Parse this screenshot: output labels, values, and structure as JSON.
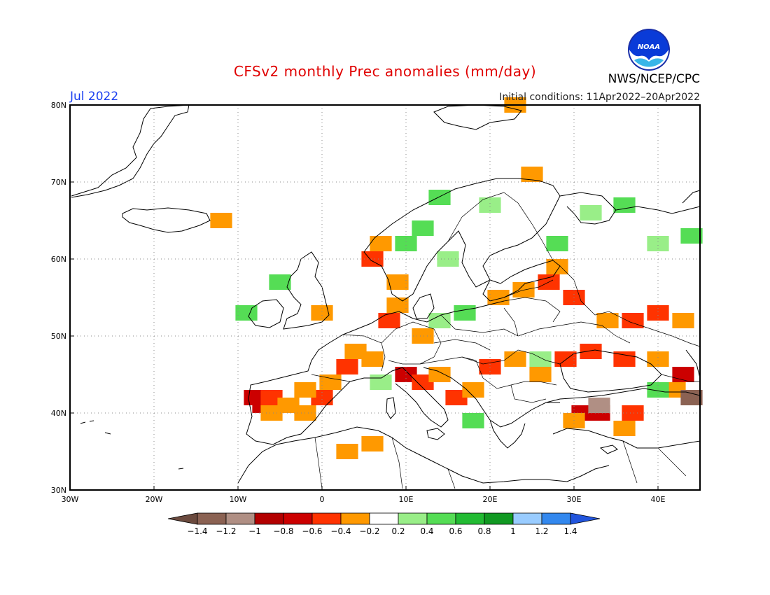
{
  "header": {
    "title": "CFSv2 monthly Prec anomalies (mm/day)",
    "month": "Jul 2022",
    "initial_conditions": "Initial conditions: 11Apr2022–20Apr2022",
    "agency": "NWS/NCEP/CPC",
    "logo_text": "NOAA"
  },
  "map": {
    "lon_range": [
      -30,
      45
    ],
    "lat_range": [
      30,
      80
    ],
    "lat_labels": [
      {
        "lat": 80,
        "label": "80N"
      },
      {
        "lat": 70,
        "label": "70N"
      },
      {
        "lat": 60,
        "label": "60N"
      },
      {
        "lat": 50,
        "label": "50N"
      },
      {
        "lat": 40,
        "label": "40N"
      },
      {
        "lat": 30,
        "label": "30N"
      }
    ],
    "lon_labels": [
      {
        "lon": -30,
        "label": "30W"
      },
      {
        "lon": -20,
        "label": "20W"
      },
      {
        "lon": -10,
        "label": "10W"
      },
      {
        "lon": 0,
        "label": "0"
      },
      {
        "lon": 10,
        "label": "10E"
      },
      {
        "lon": 20,
        "label": "20E"
      },
      {
        "lon": 30,
        "label": "30E"
      },
      {
        "lon": 40,
        "label": "40E"
      }
    ],
    "grid": true,
    "anomaly_cells": [
      {
        "lon": -7,
        "lat": 41,
        "v": -0.8
      },
      {
        "lon": -8,
        "lat": 42,
        "v": -0.8
      },
      {
        "lon": -6,
        "lat": 42,
        "v": -0.6
      },
      {
        "lon": -6,
        "lat": 40,
        "v": -0.4
      },
      {
        "lon": -4,
        "lat": 41,
        "v": -0.4
      },
      {
        "lon": -2,
        "lat": 40,
        "v": -0.4
      },
      {
        "lon": 0,
        "lat": 42,
        "v": -0.6
      },
      {
        "lon": -2,
        "lat": 43,
        "v": -0.4
      },
      {
        "lon": 1,
        "lat": 44,
        "v": -0.4
      },
      {
        "lon": 3,
        "lat": 46,
        "v": -0.6
      },
      {
        "lon": 4,
        "lat": 48,
        "v": -0.4
      },
      {
        "lon": 6,
        "lat": 47,
        "v": -0.4
      },
      {
        "lon": 10,
        "lat": 45,
        "v": -0.8
      },
      {
        "lon": 12,
        "lat": 44,
        "v": -0.6
      },
      {
        "lon": 14,
        "lat": 45,
        "v": -0.4
      },
      {
        "lon": 16,
        "lat": 42,
        "v": -0.6
      },
      {
        "lon": 18,
        "lat": 43,
        "v": -0.4
      },
      {
        "lon": 20,
        "lat": 46,
        "v": -0.6
      },
      {
        "lon": 23,
        "lat": 47,
        "v": -0.4
      },
      {
        "lon": 26,
        "lat": 45,
        "v": -0.4
      },
      {
        "lon": 29,
        "lat": 47,
        "v": -0.6
      },
      {
        "lon": 32,
        "lat": 48,
        "v": -0.6
      },
      {
        "lon": 36,
        "lat": 47,
        "v": -0.6
      },
      {
        "lon": 40,
        "lat": 47,
        "v": -0.4
      },
      {
        "lon": 43,
        "lat": 45,
        "v": -0.8
      },
      {
        "lon": 42,
        "lat": 43,
        "v": -0.4
      },
      {
        "lon": 44,
        "lat": 42,
        "v": -1.4
      },
      {
        "lon": 33,
        "lat": 40,
        "v": -0.8
      },
      {
        "lon": 31,
        "lat": 40,
        "v": -0.8
      },
      {
        "lon": 37,
        "lat": 40,
        "v": -0.6
      },
      {
        "lon": 33,
        "lat": 41,
        "v": -1.2
      },
      {
        "lon": 30,
        "lat": 39,
        "v": -0.4
      },
      {
        "lon": 36,
        "lat": 38,
        "v": -0.4
      },
      {
        "lon": 34,
        "lat": 52,
        "v": -0.4
      },
      {
        "lon": 37,
        "lat": 52,
        "v": -0.6
      },
      {
        "lon": 40,
        "lat": 53,
        "v": -0.6
      },
      {
        "lon": 43,
        "lat": 52,
        "v": -0.4
      },
      {
        "lon": 30,
        "lat": 55,
        "v": -0.6
      },
      {
        "lon": 27,
        "lat": 57,
        "v": -0.6
      },
      {
        "lon": 24,
        "lat": 56,
        "v": -0.4
      },
      {
        "lon": 21,
        "lat": 55,
        "v": -0.4
      },
      {
        "lon": 28,
        "lat": 59,
        "v": -0.4
      },
      {
        "lon": 8,
        "lat": 52,
        "v": -0.6
      },
      {
        "lon": 9,
        "lat": 54,
        "v": -0.4
      },
      {
        "lon": 6,
        "lat": 60,
        "v": -0.6
      },
      {
        "lon": 7,
        "lat": 62,
        "v": -0.4
      },
      {
        "lon": 9,
        "lat": 57,
        "v": -0.4
      },
      {
        "lon": 12,
        "lat": 50,
        "v": -0.4
      },
      {
        "lon": -12,
        "lat": 65,
        "v": -0.4
      },
      {
        "lon": 25,
        "lat": 71,
        "v": -0.4
      },
      {
        "lon": 23,
        "lat": 80,
        "v": -0.4
      },
      {
        "lon": 3,
        "lat": 35,
        "v": -0.4
      },
      {
        "lon": 6,
        "lat": 36,
        "v": -0.4
      },
      {
        "lon": 0,
        "lat": 53,
        "v": -0.4
      },
      {
        "lon": 14,
        "lat": 68,
        "v": 0.4
      },
      {
        "lon": 20,
        "lat": 67,
        "v": 0.2
      },
      {
        "lon": 12,
        "lat": 64,
        "v": 0.4
      },
      {
        "lon": 10,
        "lat": 62,
        "v": 0.4
      },
      {
        "lon": 28,
        "lat": 62,
        "v": 0.4
      },
      {
        "lon": 36,
        "lat": 67,
        "v": 0.4
      },
      {
        "lon": 32,
        "lat": 66,
        "v": 0.2
      },
      {
        "lon": 40,
        "lat": 62,
        "v": 0.2
      },
      {
        "lon": 44,
        "lat": 63,
        "v": 0.4
      },
      {
        "lon": 17,
        "lat": 53,
        "v": 0.4
      },
      {
        "lon": 14,
        "lat": 52,
        "v": 0.2
      },
      {
        "lon": 18,
        "lat": 39,
        "v": 0.4
      },
      {
        "lon": 7,
        "lat": 44,
        "v": 0.2
      },
      {
        "lon": -9,
        "lat": 53,
        "v": 0.4
      },
      {
        "lon": -5,
        "lat": 57,
        "v": 0.4
      },
      {
        "lon": 40,
        "lat": 43,
        "v": 0.4
      },
      {
        "lon": 15,
        "lat": 60,
        "v": 0.2
      },
      {
        "lon": 26,
        "lat": 47,
        "v": 0.2
      }
    ]
  },
  "colorbar": {
    "labels": [
      "−1.4",
      "−1.2",
      "−1",
      "−0.8",
      "−0.6",
      "−0.4",
      "−0.2",
      "0.2",
      "0.4",
      "0.6",
      "0.8",
      "1",
      "1.2",
      "1.4"
    ],
    "colors": [
      "#6b4a3e",
      "#8b6253",
      "#b08f84",
      "#b30000",
      "#cc0000",
      "#ff3300",
      "#ff9900",
      "#ffffff",
      "#99ee88",
      "#55dd55",
      "#22bb33",
      "#119922",
      "#99ccff",
      "#3388ee",
      "#2255dd"
    ]
  }
}
